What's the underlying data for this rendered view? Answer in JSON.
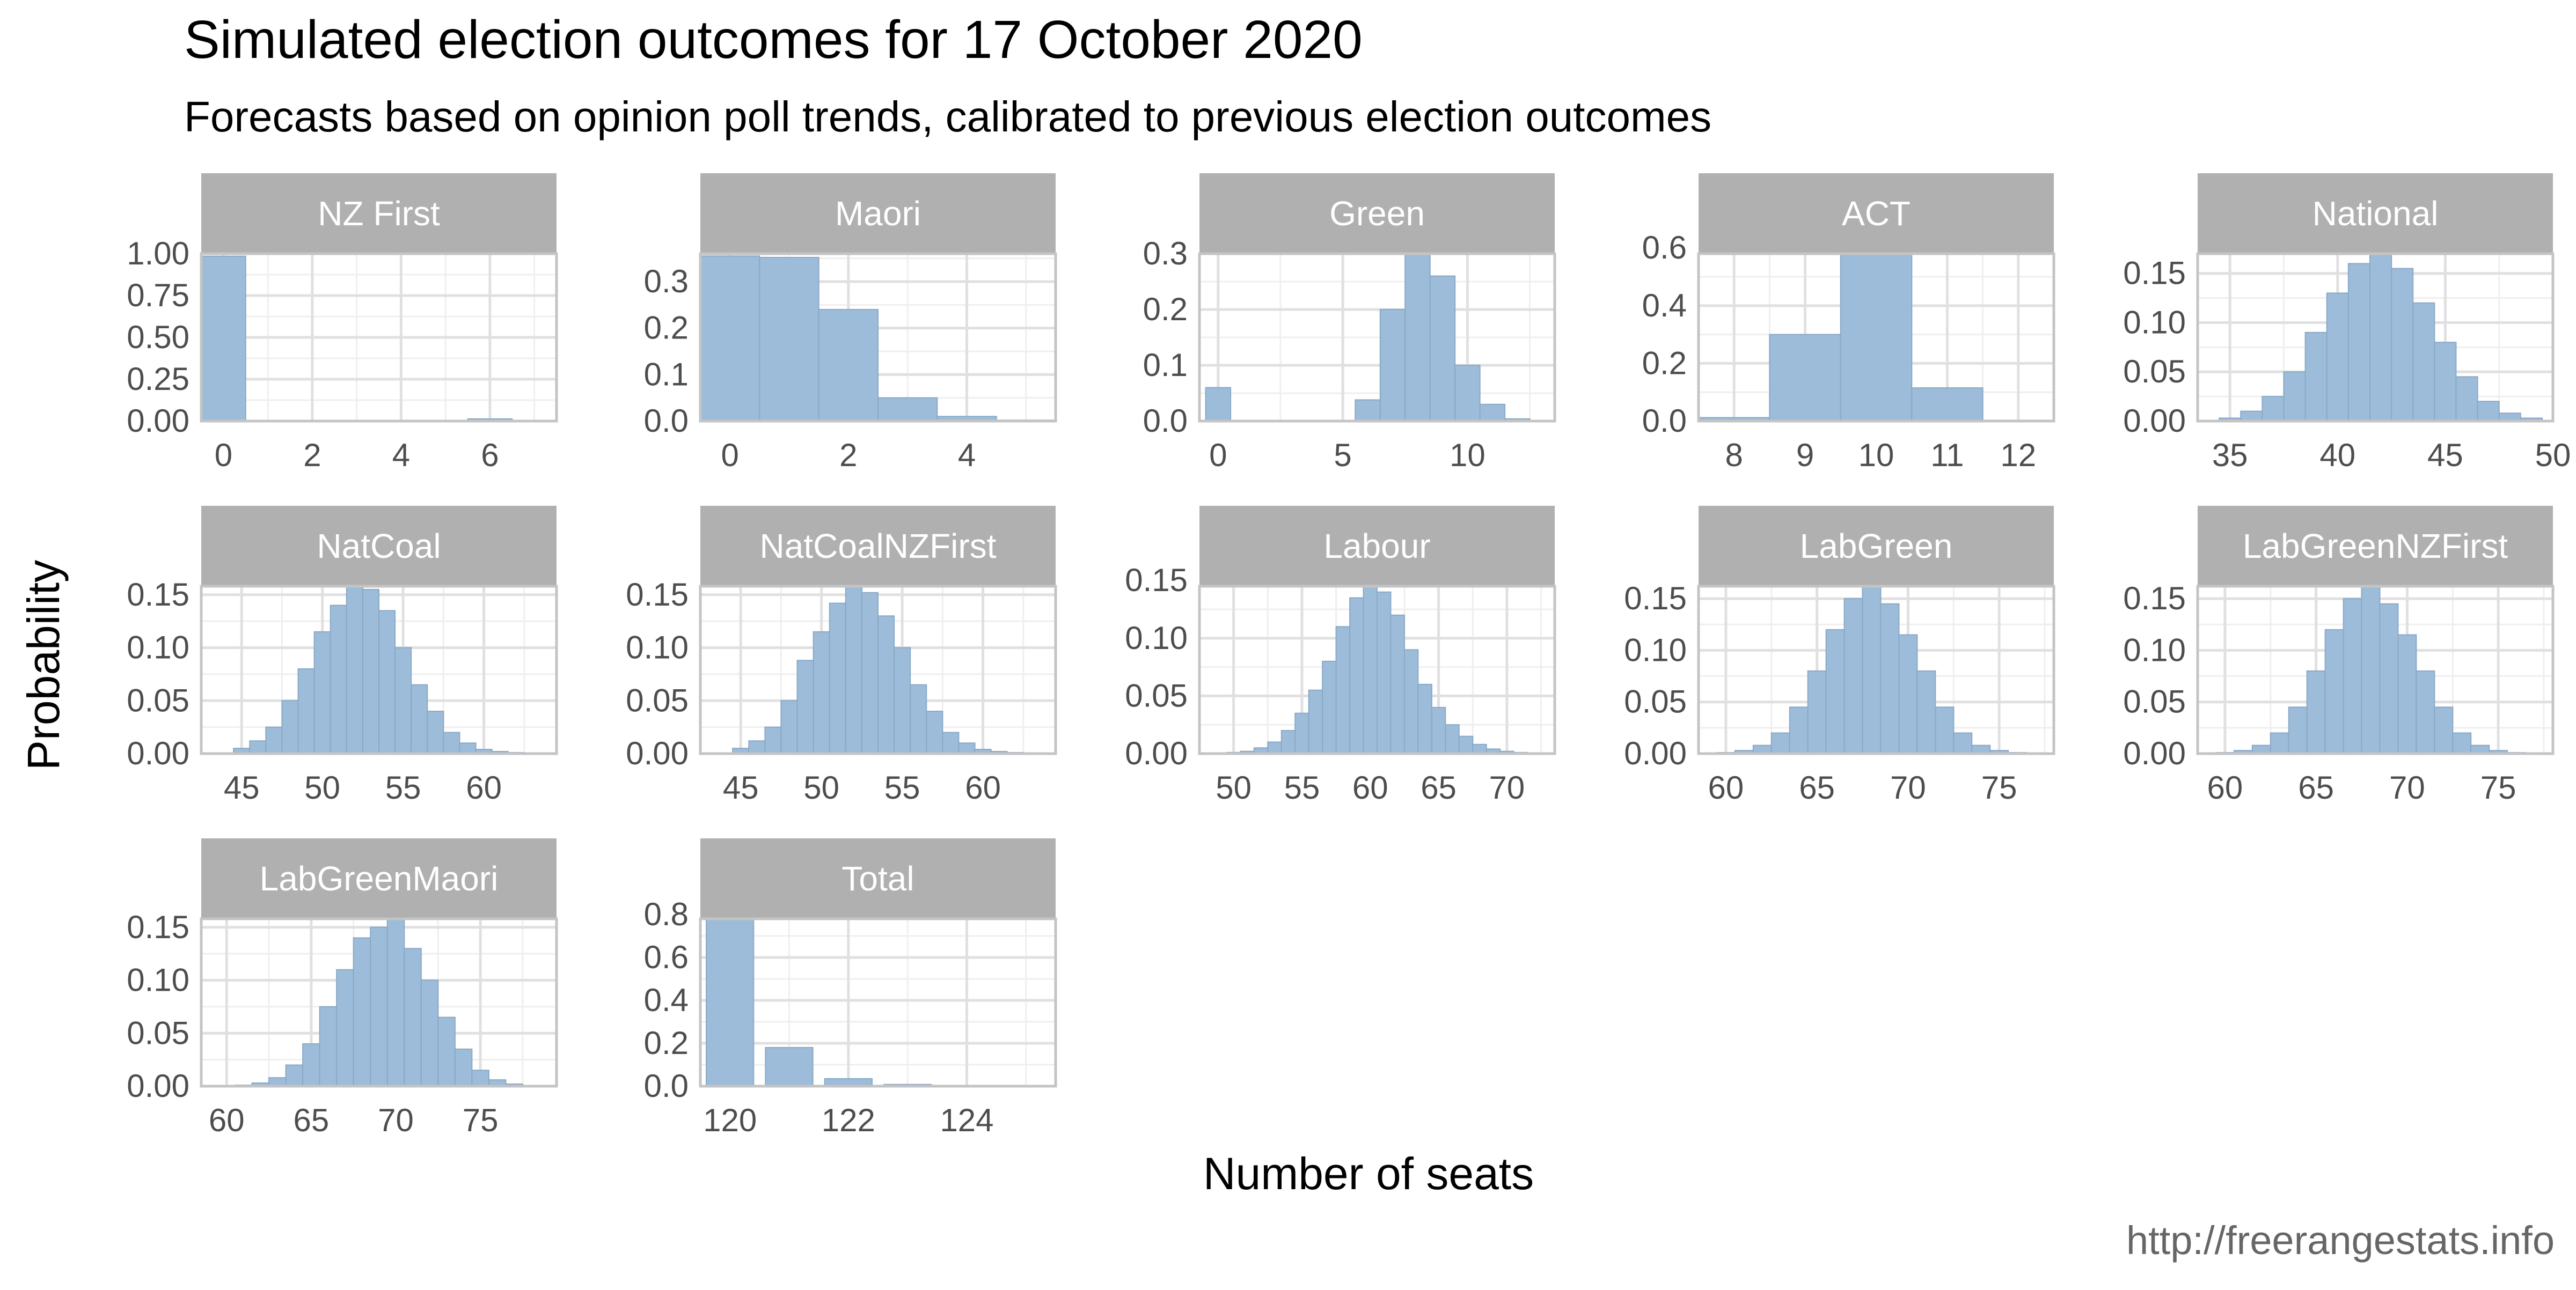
{
  "title": "Simulated election outcomes for 17 October 2020",
  "subtitle": "Forecasts based on opinion poll trends, calibrated to previous election outcomes",
  "caption": "http://freerangestats.info",
  "xlabel": "Number of seats",
  "ylabel": "Probability",
  "colors": {
    "bar_fill": "#9dbcd9",
    "bar_stroke": "#8aa9c6",
    "strip_fill": "#b0b0b0",
    "strip_text": "#ffffff",
    "panel_border": "#c4c4c4",
    "grid_major": "#e0e0e0",
    "grid_minor": "#efefef",
    "tick_text": "#4d4d4d",
    "title_text": "#000000",
    "caption_text": "#666666"
  },
  "chart_data": {
    "type": "bar",
    "grid": true,
    "layout": "facet_wrap, 5 columns, free scales",
    "panels": [
      {
        "name": "NZ First",
        "xlim": [
          -0.5,
          7.5
        ],
        "xticks": [
          0,
          2,
          4,
          6
        ],
        "ylim": [
          0,
          1
        ],
        "yticks": [
          0,
          0.25,
          0.5,
          0.75,
          1
        ],
        "ytick_labels": [
          "0.00",
          "0.25",
          "0.50",
          "0.75",
          "1.00"
        ],
        "bars": [
          {
            "x": 0,
            "y": 0.985
          },
          {
            "x": 1,
            "y": 0.0
          },
          {
            "x": 2,
            "y": 0.0
          },
          {
            "x": 3,
            "y": 0.0
          },
          {
            "x": 4,
            "y": 0.001
          },
          {
            "x": 5,
            "y": 0.001
          },
          {
            "x": 6,
            "y": 0.013
          },
          {
            "x": 7,
            "y": 0.004
          }
        ]
      },
      {
        "name": "Maori",
        "xlim": [
          -0.5,
          5.5
        ],
        "xticks": [
          0,
          2,
          4
        ],
        "ylim": [
          0,
          0.36
        ],
        "yticks": [
          0,
          0.1,
          0.2,
          0.3
        ],
        "ytick_labels": [
          "0.0",
          "0.1",
          "0.2",
          "0.3"
        ],
        "bars": [
          {
            "x": 0,
            "y": 0.355
          },
          {
            "x": 1,
            "y": 0.352
          },
          {
            "x": 2,
            "y": 0.24
          },
          {
            "x": 3,
            "y": 0.05
          },
          {
            "x": 4,
            "y": 0.01
          },
          {
            "x": 5,
            "y": 0.002
          }
        ]
      },
      {
        "name": "Green",
        "xlim": [
          -0.75,
          13.5
        ],
        "xticks": [
          0,
          5,
          10
        ],
        "ylim": [
          0,
          0.3
        ],
        "yticks": [
          0,
          0.1,
          0.2,
          0.3
        ],
        "ytick_labels": [
          "0.0",
          "0.1",
          "0.2",
          "0.3"
        ],
        "bars": [
          {
            "x": 0,
            "y": 0.06
          },
          {
            "x": 6,
            "y": 0.038
          },
          {
            "x": 7,
            "y": 0.2
          },
          {
            "x": 8,
            "y": 0.3
          },
          {
            "x": 9,
            "y": 0.26
          },
          {
            "x": 10,
            "y": 0.1
          },
          {
            "x": 11,
            "y": 0.03
          },
          {
            "x": 12,
            "y": 0.004
          }
        ]
      },
      {
        "name": "ACT",
        "xlim": [
          7.5,
          12.5
        ],
        "xticks": [
          8,
          9,
          10,
          11,
          12
        ],
        "ylim": [
          0,
          0.58
        ],
        "yticks": [
          0,
          0.2,
          0.4,
          0.6
        ],
        "ytick_labels": [
          "0.0",
          "0.2",
          "0.4",
          "0.6"
        ],
        "bars": [
          {
            "x": 8,
            "y": 0.012
          },
          {
            "x": 9,
            "y": 0.3
          },
          {
            "x": 10,
            "y": 0.58
          },
          {
            "x": 11,
            "y": 0.115
          },
          {
            "x": 12,
            "y": 0.003
          }
        ]
      },
      {
        "name": "National",
        "xlim": [
          33.5,
          50
        ],
        "xticks": [
          35,
          40,
          45,
          50
        ],
        "ylim": [
          0,
          0.17
        ],
        "yticks": [
          0,
          0.05,
          0.1,
          0.15
        ],
        "ytick_labels": [
          "0.00",
          "0.05",
          "0.10",
          "0.15"
        ],
        "bars": [
          {
            "x": 35,
            "y": 0.003
          },
          {
            "x": 36,
            "y": 0.01
          },
          {
            "x": 37,
            "y": 0.025
          },
          {
            "x": 38,
            "y": 0.05
          },
          {
            "x": 39,
            "y": 0.09
          },
          {
            "x": 40,
            "y": 0.13
          },
          {
            "x": 41,
            "y": 0.16
          },
          {
            "x": 42,
            "y": 0.17
          },
          {
            "x": 43,
            "y": 0.155
          },
          {
            "x": 44,
            "y": 0.12
          },
          {
            "x": 45,
            "y": 0.08
          },
          {
            "x": 46,
            "y": 0.045
          },
          {
            "x": 47,
            "y": 0.02
          },
          {
            "x": 48,
            "y": 0.008
          },
          {
            "x": 49,
            "y": 0.003
          }
        ]
      },
      {
        "name": "NatCoal",
        "xlim": [
          42.5,
          64.5
        ],
        "xticks": [
          45,
          50,
          55,
          60
        ],
        "ylim": [
          0,
          0.158
        ],
        "yticks": [
          0,
          0.05,
          0.1,
          0.15
        ],
        "ytick_labels": [
          "0.00",
          "0.05",
          "0.10",
          "0.15"
        ],
        "bars": [
          {
            "x": 45,
            "y": 0.005
          },
          {
            "x": 46,
            "y": 0.012
          },
          {
            "x": 47,
            "y": 0.025
          },
          {
            "x": 48,
            "y": 0.05
          },
          {
            "x": 49,
            "y": 0.08
          },
          {
            "x": 50,
            "y": 0.115
          },
          {
            "x": 51,
            "y": 0.14
          },
          {
            "x": 52,
            "y": 0.158
          },
          {
            "x": 53,
            "y": 0.155
          },
          {
            "x": 54,
            "y": 0.135
          },
          {
            "x": 55,
            "y": 0.1
          },
          {
            "x": 56,
            "y": 0.065
          },
          {
            "x": 57,
            "y": 0.04
          },
          {
            "x": 58,
            "y": 0.02
          },
          {
            "x": 59,
            "y": 0.01
          },
          {
            "x": 60,
            "y": 0.004
          },
          {
            "x": 61,
            "y": 0.002
          },
          {
            "x": 62,
            "y": 0.001
          }
        ]
      },
      {
        "name": "NatCoalNZFirst",
        "xlim": [
          42.5,
          64.5
        ],
        "xticks": [
          45,
          50,
          55,
          60
        ],
        "ylim": [
          0,
          0.158
        ],
        "yticks": [
          0,
          0.05,
          0.1,
          0.15
        ],
        "ytick_labels": [
          "0.00",
          "0.05",
          "0.10",
          "0.15"
        ],
        "bars": [
          {
            "x": 45,
            "y": 0.005
          },
          {
            "x": 46,
            "y": 0.012
          },
          {
            "x": 47,
            "y": 0.025
          },
          {
            "x": 48,
            "y": 0.05
          },
          {
            "x": 49,
            "y": 0.088
          },
          {
            "x": 50,
            "y": 0.115
          },
          {
            "x": 51,
            "y": 0.142
          },
          {
            "x": 52,
            "y": 0.158
          },
          {
            "x": 53,
            "y": 0.152
          },
          {
            "x": 54,
            "y": 0.13
          },
          {
            "x": 55,
            "y": 0.1
          },
          {
            "x": 56,
            "y": 0.065
          },
          {
            "x": 57,
            "y": 0.04
          },
          {
            "x": 58,
            "y": 0.02
          },
          {
            "x": 59,
            "y": 0.01
          },
          {
            "x": 60,
            "y": 0.004
          },
          {
            "x": 61,
            "y": 0.002
          },
          {
            "x": 62,
            "y": 0.001
          }
        ]
      },
      {
        "name": "Labour",
        "xlim": [
          47.5,
          73.5
        ],
        "xticks": [
          50,
          55,
          60,
          65,
          70
        ],
        "ylim": [
          0,
          0.145
        ],
        "yticks": [
          0,
          0.05,
          0.1,
          0.15
        ],
        "ytick_labels": [
          "0.00",
          "0.05",
          "0.10",
          "0.15"
        ],
        "bars": [
          {
            "x": 50,
            "y": 0.001
          },
          {
            "x": 51,
            "y": 0.002
          },
          {
            "x": 52,
            "y": 0.005
          },
          {
            "x": 53,
            "y": 0.01
          },
          {
            "x": 54,
            "y": 0.02
          },
          {
            "x": 55,
            "y": 0.035
          },
          {
            "x": 56,
            "y": 0.055
          },
          {
            "x": 57,
            "y": 0.08
          },
          {
            "x": 58,
            "y": 0.11
          },
          {
            "x": 59,
            "y": 0.135
          },
          {
            "x": 60,
            "y": 0.145
          },
          {
            "x": 61,
            "y": 0.14
          },
          {
            "x": 62,
            "y": 0.12
          },
          {
            "x": 63,
            "y": 0.09
          },
          {
            "x": 64,
            "y": 0.06
          },
          {
            "x": 65,
            "y": 0.04
          },
          {
            "x": 66,
            "y": 0.025
          },
          {
            "x": 67,
            "y": 0.015
          },
          {
            "x": 68,
            "y": 0.008
          },
          {
            "x": 69,
            "y": 0.004
          },
          {
            "x": 70,
            "y": 0.002
          },
          {
            "x": 71,
            "y": 0.001
          }
        ]
      },
      {
        "name": "LabGreen",
        "xlim": [
          58.5,
          78
        ],
        "xticks": [
          60,
          65,
          70,
          75
        ],
        "ylim": [
          0,
          0.162
        ],
        "yticks": [
          0,
          0.05,
          0.1,
          0.15
        ],
        "ytick_labels": [
          "0.00",
          "0.05",
          "0.10",
          "0.15"
        ],
        "bars": [
          {
            "x": 60,
            "y": 0.001
          },
          {
            "x": 61,
            "y": 0.003
          },
          {
            "x": 62,
            "y": 0.008
          },
          {
            "x": 63,
            "y": 0.02
          },
          {
            "x": 64,
            "y": 0.045
          },
          {
            "x": 65,
            "y": 0.08
          },
          {
            "x": 66,
            "y": 0.12
          },
          {
            "x": 67,
            "y": 0.15
          },
          {
            "x": 68,
            "y": 0.162
          },
          {
            "x": 69,
            "y": 0.145
          },
          {
            "x": 70,
            "y": 0.115
          },
          {
            "x": 71,
            "y": 0.08
          },
          {
            "x": 72,
            "y": 0.045
          },
          {
            "x": 73,
            "y": 0.02
          },
          {
            "x": 74,
            "y": 0.008
          },
          {
            "x": 75,
            "y": 0.003
          },
          {
            "x": 76,
            "y": 0.001
          }
        ]
      },
      {
        "name": "LabGreenNZFirst",
        "xlim": [
          58.5,
          78
        ],
        "xticks": [
          60,
          65,
          70,
          75
        ],
        "ylim": [
          0,
          0.162
        ],
        "yticks": [
          0,
          0.05,
          0.1,
          0.15
        ],
        "ytick_labels": [
          "0.00",
          "0.05",
          "0.10",
          "0.15"
        ],
        "bars": [
          {
            "x": 60,
            "y": 0.001
          },
          {
            "x": 61,
            "y": 0.003
          },
          {
            "x": 62,
            "y": 0.008
          },
          {
            "x": 63,
            "y": 0.02
          },
          {
            "x": 64,
            "y": 0.045
          },
          {
            "x": 65,
            "y": 0.08
          },
          {
            "x": 66,
            "y": 0.12
          },
          {
            "x": 67,
            "y": 0.15
          },
          {
            "x": 68,
            "y": 0.162
          },
          {
            "x": 69,
            "y": 0.145
          },
          {
            "x": 70,
            "y": 0.115
          },
          {
            "x": 71,
            "y": 0.08
          },
          {
            "x": 72,
            "y": 0.045
          },
          {
            "x": 73,
            "y": 0.02
          },
          {
            "x": 74,
            "y": 0.008
          },
          {
            "x": 75,
            "y": 0.003
          },
          {
            "x": 76,
            "y": 0.001
          }
        ]
      },
      {
        "name": "LabGreenMaori",
        "xlim": [
          58.5,
          79.5
        ],
        "xticks": [
          60,
          65,
          70,
          75
        ],
        "ylim": [
          0,
          0.158
        ],
        "yticks": [
          0,
          0.05,
          0.1,
          0.15
        ],
        "ytick_labels": [
          "0.00",
          "0.05",
          "0.10",
          "0.15"
        ],
        "bars": [
          {
            "x": 61,
            "y": 0.001
          },
          {
            "x": 62,
            "y": 0.003
          },
          {
            "x": 63,
            "y": 0.008
          },
          {
            "x": 64,
            "y": 0.02
          },
          {
            "x": 65,
            "y": 0.04
          },
          {
            "x": 66,
            "y": 0.075
          },
          {
            "x": 67,
            "y": 0.11
          },
          {
            "x": 68,
            "y": 0.14
          },
          {
            "x": 69,
            "y": 0.15
          },
          {
            "x": 70,
            "y": 0.158
          },
          {
            "x": 71,
            "y": 0.13
          },
          {
            "x": 72,
            "y": 0.1
          },
          {
            "x": 73,
            "y": 0.065
          },
          {
            "x": 74,
            "y": 0.035
          },
          {
            "x": 75,
            "y": 0.015
          },
          {
            "x": 76,
            "y": 0.006
          },
          {
            "x": 77,
            "y": 0.002
          }
        ]
      },
      {
        "name": "Total",
        "xlim": [
          119.5,
          125.5
        ],
        "xticks": [
          120,
          122,
          124
        ],
        "binwidth": 0.8,
        "ylim": [
          0,
          0.78
        ],
        "yticks": [
          0,
          0.2,
          0.4,
          0.6,
          0.8
        ],
        "ytick_labels": [
          "0.0",
          "0.2",
          "0.4",
          "0.6",
          "0.8"
        ],
        "bars": [
          {
            "x": 120,
            "y": 0.78
          },
          {
            "x": 121,
            "y": 0.18
          },
          {
            "x": 122,
            "y": 0.035
          },
          {
            "x": 123,
            "y": 0.008
          },
          {
            "x": 124,
            "y": 0.003
          },
          {
            "x": 125,
            "y": 0.001
          }
        ]
      }
    ]
  }
}
